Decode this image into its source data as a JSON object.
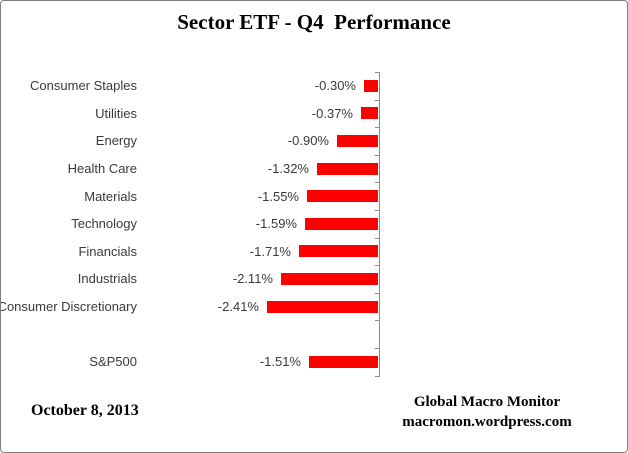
{
  "chart": {
    "title": "Sector ETF - Q4  Performance",
    "footer_left": "October 8, 2013",
    "footer_right": {
      "line1": "Global Macro Monitor",
      "line2": "macromon.wordpress.com"
    }
  },
  "chart_data": {
    "type": "bar",
    "orientation": "horizontal",
    "title": "Sector ETF - Q4  Performance",
    "categories": [
      "Consumer Staples",
      "Utilities",
      "Energy",
      "Health Care",
      "Materials",
      "Technology",
      "Financials",
      "Industrials",
      "Consumer Discretionary",
      "",
      "S&P500"
    ],
    "values": [
      -0.3,
      -0.37,
      -0.9,
      -1.32,
      -1.55,
      -1.59,
      -1.71,
      -2.11,
      -2.41,
      null,
      -1.51
    ],
    "value_labels": [
      "-0.30%",
      "-0.37%",
      "-0.90%",
      "-1.32%",
      "-1.55%",
      "-1.59%",
      "-1.71%",
      "-2.11%",
      "-2.41%",
      "",
      "-1.51%"
    ],
    "xlabel": "",
    "ylabel": "",
    "xlim": [
      -2.75,
      0
    ],
    "value_axis_visible": false,
    "grid": false,
    "legend": "none",
    "bar_color": "#ff0000",
    "axis_color": "#8c8c8c"
  }
}
